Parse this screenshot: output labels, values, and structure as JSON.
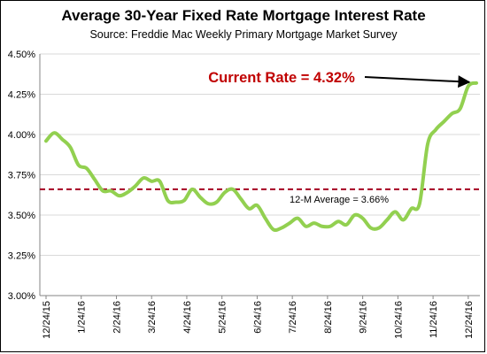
{
  "chart_data": {
    "type": "line",
    "title": "Average 30-Year Fixed Rate Mortgage Interest Rate",
    "subtitle": "Source: Freddie Mac Weekly Primary Mortgage Market Survey",
    "xlabel": "",
    "ylabel": "",
    "ylim": [
      3.0,
      4.5
    ],
    "yticks": [
      "3.00%",
      "3.25%",
      "3.50%",
      "3.75%",
      "4.00%",
      "4.25%",
      "4.50%"
    ],
    "xticks": [
      "12/24/15",
      "1/24/16",
      "2/24/16",
      "3/24/16",
      "4/24/16",
      "5/24/16",
      "6/24/16",
      "7/24/16",
      "8/24/16",
      "9/24/16",
      "10/24/16",
      "11/24/16",
      "12/24/16"
    ],
    "grid": true,
    "series_color": "#92D050",
    "reference_line": {
      "value": 3.66,
      "label": "12-M Average = 3.66%",
      "color": "#A50021"
    },
    "callout": {
      "label": "Current Rate = 4.32%",
      "color": "#C00000"
    },
    "x": [
      "12/24/15",
      "12/31/15",
      "1/7/16",
      "1/14/16",
      "1/21/16",
      "1/28/16",
      "2/4/16",
      "2/11/16",
      "2/18/16",
      "2/25/16",
      "3/3/16",
      "3/10/16",
      "3/17/16",
      "3/24/16",
      "3/31/16",
      "4/7/16",
      "4/14/16",
      "4/21/16",
      "4/28/16",
      "5/5/16",
      "5/12/16",
      "5/19/16",
      "5/26/16",
      "6/2/16",
      "6/9/16",
      "6/16/16",
      "6/23/16",
      "6/30/16",
      "7/7/16",
      "7/14/16",
      "7/21/16",
      "7/28/16",
      "8/4/16",
      "8/11/16",
      "8/18/16",
      "8/25/16",
      "9/1/16",
      "9/8/16",
      "9/15/16",
      "9/22/16",
      "9/29/16",
      "10/6/16",
      "10/13/16",
      "10/20/16",
      "10/27/16",
      "11/3/16",
      "11/10/16",
      "11/17/16",
      "11/24/16",
      "12/1/16",
      "12/8/16",
      "12/15/16",
      "12/22/16",
      "12/29/16"
    ],
    "values": [
      3.96,
      4.01,
      3.97,
      3.92,
      3.81,
      3.79,
      3.72,
      3.65,
      3.65,
      3.62,
      3.64,
      3.68,
      3.73,
      3.71,
      3.71,
      3.59,
      3.58,
      3.59,
      3.66,
      3.61,
      3.57,
      3.58,
      3.64,
      3.66,
      3.6,
      3.54,
      3.56,
      3.48,
      3.41,
      3.42,
      3.45,
      3.48,
      3.43,
      3.45,
      3.43,
      3.43,
      3.46,
      3.44,
      3.5,
      3.48,
      3.42,
      3.42,
      3.47,
      3.52,
      3.47,
      3.54,
      3.57,
      3.94,
      4.03,
      4.08,
      4.13,
      4.16,
      4.3,
      4.32
    ]
  }
}
